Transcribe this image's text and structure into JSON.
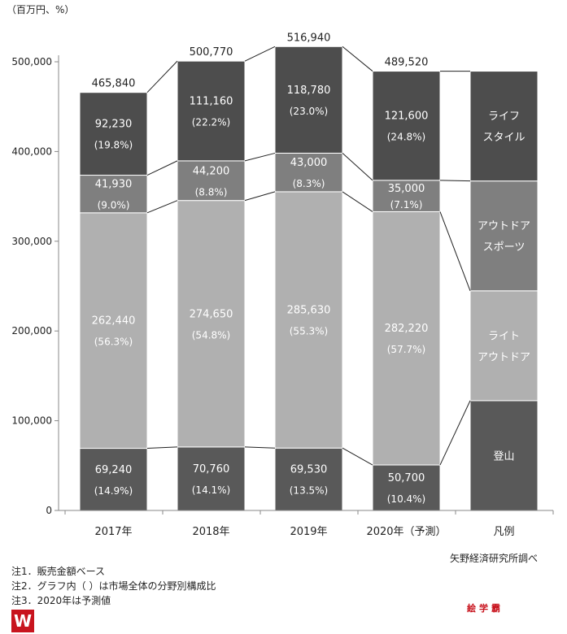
{
  "chart_data": {
    "type": "bar",
    "stacked": true,
    "unit_label": "（百万円、%）",
    "categories": [
      "2017年",
      "2018年",
      "2019年",
      "2020年（予測）"
    ],
    "legend_category": "凡例",
    "series": [
      {
        "name": "登山",
        "values": [
          69240,
          70760,
          69530,
          50700
        ],
        "shares": [
          "(14.9%)",
          "(14.1%)",
          "(13.5%)",
          "(10.4%)"
        ],
        "color": "#595959"
      },
      {
        "name": "ライトアウトドア",
        "legend_lines": [
          "ライト",
          "アウトドア"
        ],
        "values": [
          262440,
          274650,
          285630,
          282220
        ],
        "shares": [
          "(56.3%)",
          "(54.8%)",
          "(55.3%)",
          "(57.7%)"
        ],
        "color": "#b0b0b0"
      },
      {
        "name": "アウトドアスポーツ",
        "legend_lines": [
          "アウトドア",
          "スポーツ"
        ],
        "values": [
          41930,
          44200,
          43000,
          35000
        ],
        "shares": [
          "(9.0%)",
          "(8.8%)",
          "(8.3%)",
          "(7.1%)"
        ],
        "color": "#7f7f7f"
      },
      {
        "name": "ライフスタイル",
        "legend_lines": [
          "ライフ",
          "スタイル"
        ],
        "values": [
          92230,
          111160,
          118780,
          121600
        ],
        "shares": [
          "(19.8%)",
          "(22.2%)",
          "(23.0%)",
          "(24.8%)"
        ],
        "color": "#4d4d4d"
      }
    ],
    "totals": [
      "465,840",
      "500,770",
      "516,940",
      "489,520"
    ],
    "ylim": [
      0,
      500000
    ],
    "yticks": [
      0,
      100000,
      200000,
      300000,
      400000,
      500000
    ],
    "ytick_labels": [
      "0",
      "100,000",
      "200,000",
      "300,000",
      "400,000",
      "500,000"
    ],
    "grid": false
  },
  "notes": [
    "注1．販売金額ベース",
    "注2．グラフ内（ ）は市場全体の分野別構成比",
    "注3．2020年は予測値"
  ],
  "source": "矢野経済研究所調べ",
  "watermark": "絵学霸"
}
